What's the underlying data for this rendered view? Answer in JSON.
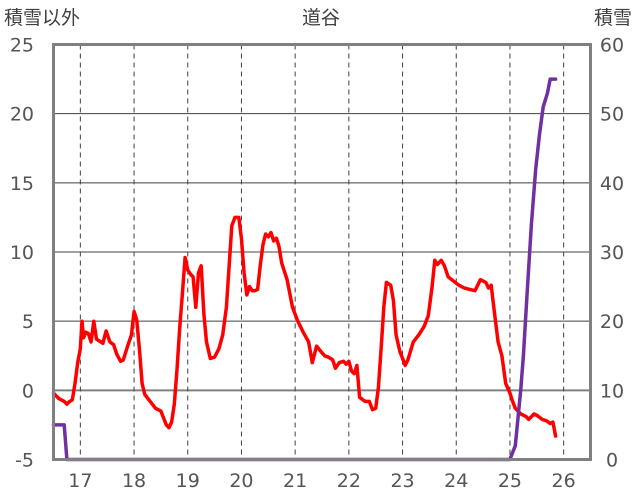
{
  "chart_data": {
    "type": "line",
    "title": "道谷",
    "y_left_label": "積雪以外",
    "y_right_label": "積雪",
    "x_ticks": [
      "17",
      "18",
      "19",
      "20",
      "21",
      "22",
      "23",
      "24",
      "25",
      "26"
    ],
    "y_left_ticks": [
      "25",
      "20",
      "15",
      "10",
      "5",
      "0",
      "-5"
    ],
    "y_right_ticks": [
      "60",
      "50",
      "40",
      "30",
      "20",
      "10",
      "0"
    ],
    "y_left_range": [
      -5,
      25
    ],
    "y_right_range": [
      0,
      60
    ],
    "x_range": [
      16.5,
      26.5
    ],
    "grid": true,
    "colors": {
      "temperature": "#ff0000",
      "snow": "#7030a0",
      "frame": "#808080",
      "grid": "#404040"
    },
    "series": [
      {
        "axis": "left",
        "color": "#ff0000",
        "points": [
          [
            16.5,
            -0.2
          ],
          [
            16.6,
            -0.6
          ],
          [
            16.7,
            -0.8
          ],
          [
            16.75,
            -1.0
          ],
          [
            16.8,
            -0.8
          ],
          [
            16.85,
            -0.7
          ],
          [
            16.9,
            0.5
          ],
          [
            16.95,
            2.0
          ],
          [
            17.0,
            3.0
          ],
          [
            17.03,
            5.0
          ],
          [
            17.06,
            3.8
          ],
          [
            17.1,
            4.2
          ],
          [
            17.15,
            4.1
          ],
          [
            17.2,
            3.5
          ],
          [
            17.25,
            5.0
          ],
          [
            17.3,
            3.7
          ],
          [
            17.38,
            3.5
          ],
          [
            17.42,
            3.4
          ],
          [
            17.48,
            4.3
          ],
          [
            17.55,
            3.5
          ],
          [
            17.62,
            3.3
          ],
          [
            17.68,
            2.6
          ],
          [
            17.75,
            2.1
          ],
          [
            17.8,
            2.2
          ],
          [
            17.88,
            3.2
          ],
          [
            17.95,
            4.0
          ],
          [
            18.0,
            5.7
          ],
          [
            18.05,
            5.1
          ],
          [
            18.1,
            3.0
          ],
          [
            18.15,
            0.5
          ],
          [
            18.2,
            -0.3
          ],
          [
            18.3,
            -0.8
          ],
          [
            18.4,
            -1.3
          ],
          [
            18.5,
            -1.5
          ],
          [
            18.55,
            -2.0
          ],
          [
            18.6,
            -2.5
          ],
          [
            18.65,
            -2.7
          ],
          [
            18.7,
            -2.3
          ],
          [
            18.75,
            -1.0
          ],
          [
            18.8,
            1.5
          ],
          [
            18.85,
            4.5
          ],
          [
            18.9,
            7.0
          ],
          [
            18.95,
            9.6
          ],
          [
            19.0,
            8.7
          ],
          [
            19.05,
            8.4
          ],
          [
            19.1,
            8.2
          ],
          [
            19.15,
            6.0
          ],
          [
            19.2,
            8.5
          ],
          [
            19.25,
            9.0
          ],
          [
            19.3,
            5.5
          ],
          [
            19.35,
            3.5
          ],
          [
            19.42,
            2.3
          ],
          [
            19.5,
            2.4
          ],
          [
            19.58,
            3.0
          ],
          [
            19.65,
            4.0
          ],
          [
            19.72,
            6.0
          ],
          [
            19.78,
            9.5
          ],
          [
            19.82,
            11.9
          ],
          [
            19.88,
            12.5
          ],
          [
            19.95,
            12.5
          ],
          [
            20.0,
            11.0
          ],
          [
            20.05,
            8.5
          ],
          [
            20.1,
            6.9
          ],
          [
            20.15,
            7.5
          ],
          [
            20.2,
            7.2
          ],
          [
            20.25,
            7.2
          ],
          [
            20.3,
            7.3
          ],
          [
            20.35,
            9.0
          ],
          [
            20.4,
            10.5
          ],
          [
            20.45,
            11.3
          ],
          [
            20.5,
            11.1
          ],
          [
            20.55,
            11.4
          ],
          [
            20.6,
            10.8
          ],
          [
            20.65,
            11.0
          ],
          [
            20.7,
            10.4
          ],
          [
            20.75,
            9.2
          ],
          [
            20.85,
            8.0
          ],
          [
            20.95,
            6.0
          ],
          [
            21.05,
            5.0
          ],
          [
            21.15,
            4.2
          ],
          [
            21.25,
            3.5
          ],
          [
            21.32,
            2.0
          ],
          [
            21.4,
            3.2
          ],
          [
            21.48,
            2.8
          ],
          [
            21.55,
            2.5
          ],
          [
            21.62,
            2.4
          ],
          [
            21.7,
            2.2
          ],
          [
            21.75,
            1.6
          ],
          [
            21.82,
            2.0
          ],
          [
            21.9,
            2.1
          ],
          [
            21.95,
            1.9
          ],
          [
            22.0,
            2.1
          ],
          [
            22.05,
            1.4
          ],
          [
            22.1,
            1.2
          ],
          [
            22.15,
            1.8
          ],
          [
            22.2,
            -0.5
          ],
          [
            22.3,
            -0.8
          ],
          [
            22.38,
            -0.8
          ],
          [
            22.44,
            -1.4
          ],
          [
            22.5,
            -1.3
          ],
          [
            22.55,
            0.2
          ],
          [
            22.6,
            3.0
          ],
          [
            22.65,
            6.0
          ],
          [
            22.7,
            7.8
          ],
          [
            22.78,
            7.6
          ],
          [
            22.83,
            6.5
          ],
          [
            22.88,
            4.0
          ],
          [
            22.95,
            2.8
          ],
          [
            23.0,
            2.3
          ],
          [
            23.05,
            1.8
          ],
          [
            23.1,
            2.2
          ],
          [
            23.2,
            3.5
          ],
          [
            23.3,
            4.0
          ],
          [
            23.4,
            4.6
          ],
          [
            23.48,
            5.4
          ],
          [
            23.55,
            7.5
          ],
          [
            23.6,
            9.4
          ],
          [
            23.65,
            9.1
          ],
          [
            23.72,
            9.4
          ],
          [
            23.78,
            9.0
          ],
          [
            23.85,
            8.2
          ],
          [
            23.95,
            7.9
          ],
          [
            24.05,
            7.6
          ],
          [
            24.15,
            7.4
          ],
          [
            24.25,
            7.3
          ],
          [
            24.35,
            7.2
          ],
          [
            24.4,
            7.6
          ],
          [
            24.45,
            8.0
          ],
          [
            24.55,
            7.8
          ],
          [
            24.6,
            7.4
          ],
          [
            24.65,
            7.6
          ],
          [
            24.7,
            6.0
          ],
          [
            24.78,
            3.5
          ],
          [
            24.85,
            2.5
          ],
          [
            24.92,
            0.5
          ],
          [
            25.0,
            -0.2
          ],
          [
            25.05,
            -0.8
          ],
          [
            25.1,
            -1.3
          ],
          [
            25.2,
            -1.7
          ],
          [
            25.3,
            -1.9
          ],
          [
            25.35,
            -2.1
          ],
          [
            25.45,
            -1.7
          ],
          [
            25.5,
            -1.8
          ],
          [
            25.6,
            -2.1
          ],
          [
            25.68,
            -2.2
          ],
          [
            25.75,
            -2.4
          ],
          [
            25.8,
            -2.3
          ],
          [
            25.85,
            -3.3
          ]
        ]
      },
      {
        "axis": "right",
        "color": "#7030a0",
        "points": [
          [
            16.5,
            5
          ],
          [
            16.7,
            5
          ],
          [
            16.75,
            0
          ],
          [
            25.0,
            0
          ],
          [
            25.1,
            2
          ],
          [
            25.2,
            10
          ],
          [
            25.25,
            15
          ],
          [
            25.32,
            24
          ],
          [
            25.4,
            34
          ],
          [
            25.48,
            42
          ],
          [
            25.55,
            47
          ],
          [
            25.62,
            51
          ],
          [
            25.66,
            52
          ],
          [
            25.7,
            53
          ],
          [
            25.75,
            55
          ],
          [
            25.8,
            55
          ],
          [
            25.85,
            55
          ]
        ]
      }
    ]
  }
}
